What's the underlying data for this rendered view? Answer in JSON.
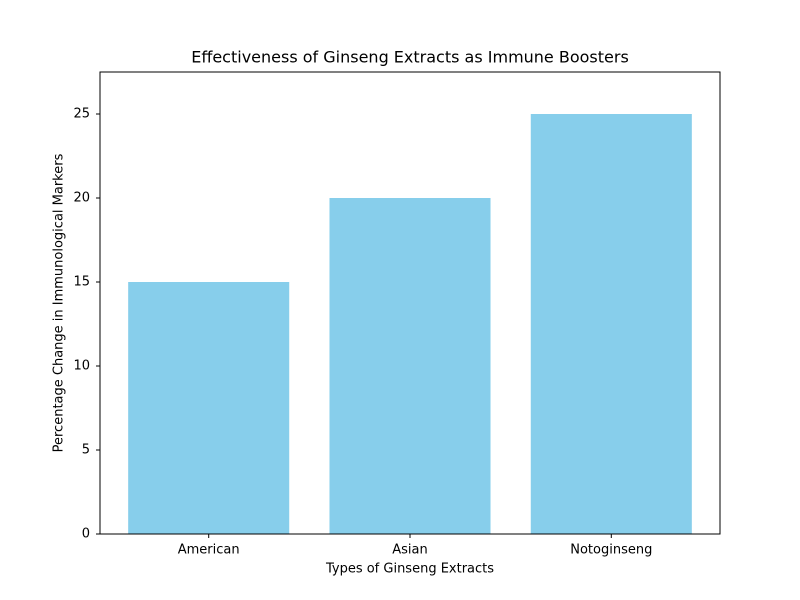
{
  "chart_data": {
    "type": "bar",
    "title": "Effectiveness of Ginseng Extracts as Immune Boosters",
    "x_label": "Types of Ginseng Extracts",
    "y_label": "Percentage Change in Immunological Markers",
    "categories": [
      "American",
      "Asian",
      "Notoginseng"
    ],
    "values": [
      15,
      20,
      25
    ],
    "color": "#87ceeb",
    "ylim": [
      0,
      27.5
    ],
    "yticks": [
      0,
      5,
      10,
      15,
      20,
      25
    ],
    "grid": false
  }
}
